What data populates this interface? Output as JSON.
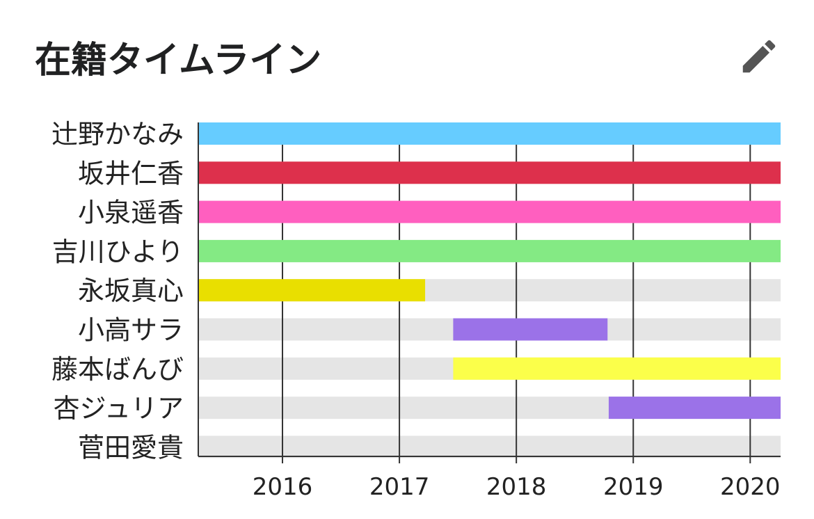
{
  "header": {
    "title": "在籍タイムライン",
    "edit_icon": "pencil-icon"
  },
  "chart_data": {
    "type": "bar",
    "orientation": "horizontal-timeline",
    "title": "在籍タイムライン",
    "xlabel": "",
    "ylabel": "",
    "x_ticks": [
      "2016",
      "2017",
      "2018",
      "2019",
      "2020"
    ],
    "xlim": [
      2015.28,
      2020.26
    ],
    "grid": "vertical",
    "members": [
      {
        "name": "辻野かなみ",
        "start": 2015.28,
        "end": 2020.26,
        "color": "#66ccff"
      },
      {
        "name": "坂井仁香",
        "start": 2015.28,
        "end": 2020.26,
        "color": "#dd304c"
      },
      {
        "name": "小泉遥香",
        "start": 2015.28,
        "end": 2020.26,
        "color": "#ff5fbf"
      },
      {
        "name": "吉川ひより",
        "start": 2015.28,
        "end": 2020.26,
        "color": "#84ea84"
      },
      {
        "name": "永坂真心",
        "start": 2015.28,
        "end": 2017.22,
        "color": "#e9df00"
      },
      {
        "name": "小高サラ",
        "start": 2017.46,
        "end": 2018.78,
        "color": "#9b72e8"
      },
      {
        "name": "藤本ばんび",
        "start": 2017.46,
        "end": 2020.26,
        "color": "#fbff4a"
      },
      {
        "name": "杏ジュリア",
        "start": 2018.79,
        "end": 2020.26,
        "color": "#9b72e8"
      },
      {
        "name": "菅田愛貴",
        "start": 2020.26,
        "end": 2020.26,
        "color": "#f5e26a"
      }
    ]
  }
}
